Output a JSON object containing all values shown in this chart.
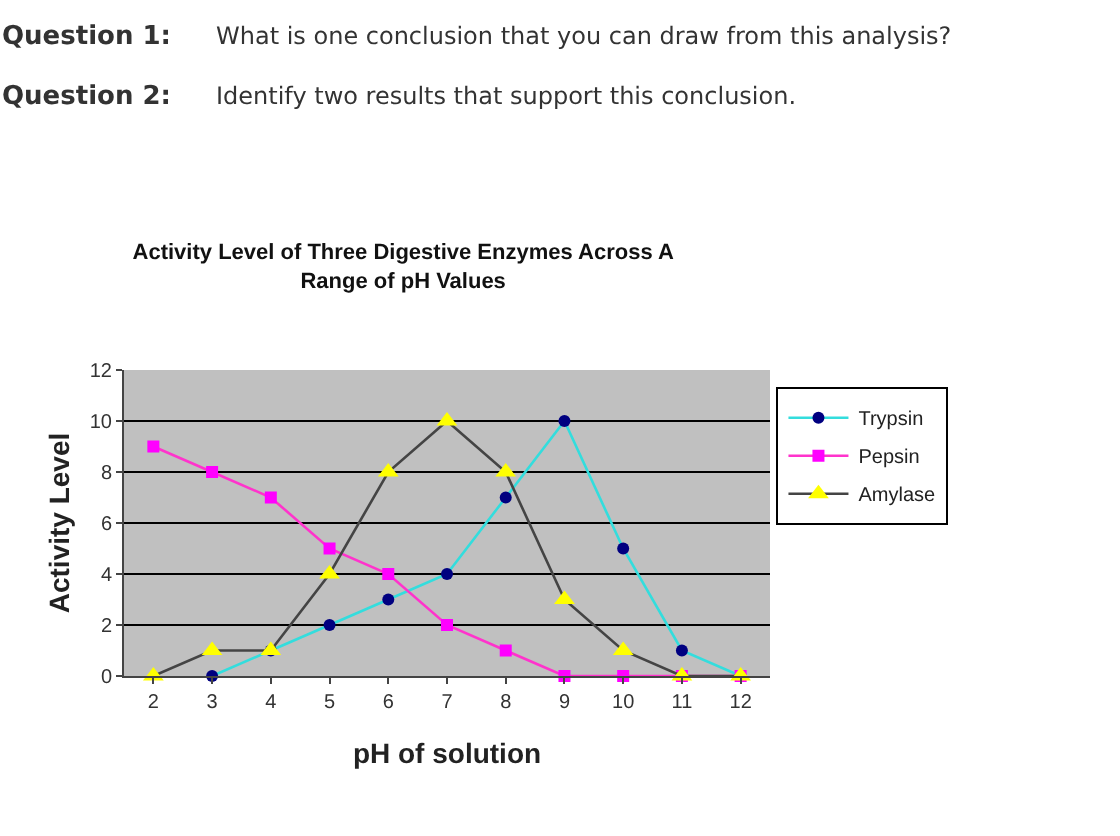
{
  "chart_data": {
    "type": "line",
    "title": "Activity Level of Three Digestive Enzymes Across A\nRange of pH Values",
    "xlabel": "pH of solution",
    "ylabel": "Activity Level",
    "annotations": [
      "Question 1: What is one conclusion that you can draw from this analysis?",
      "Question 2: Identify two results that support this conclusion."
    ],
    "categories": [
      "2",
      "3",
      "4",
      "5",
      "6",
      "7",
      "8",
      "9",
      "10",
      "11",
      "12"
    ],
    "series": [
      {
        "name": "Trypsin",
        "color": "#33dddd",
        "marker": "circle",
        "values": [
          null,
          0,
          1,
          2,
          3,
          4,
          7,
          10,
          5,
          1,
          0
        ]
      },
      {
        "name": "Pepsin",
        "color": "#ff33cc",
        "marker": "square",
        "values": [
          9,
          8,
          7,
          5,
          4,
          2,
          1,
          0,
          0,
          0,
          0
        ]
      },
      {
        "name": "Amylase",
        "color": "#444444",
        "marker": "triangle",
        "values": [
          0,
          1,
          1,
          4,
          8,
          10,
          8,
          3,
          1,
          0,
          0
        ]
      }
    ],
    "ylim": [
      0,
      12
    ],
    "yticks": [
      0,
      2,
      4,
      6,
      8,
      10,
      12
    ],
    "grid": "y",
    "legend": "right"
  }
}
